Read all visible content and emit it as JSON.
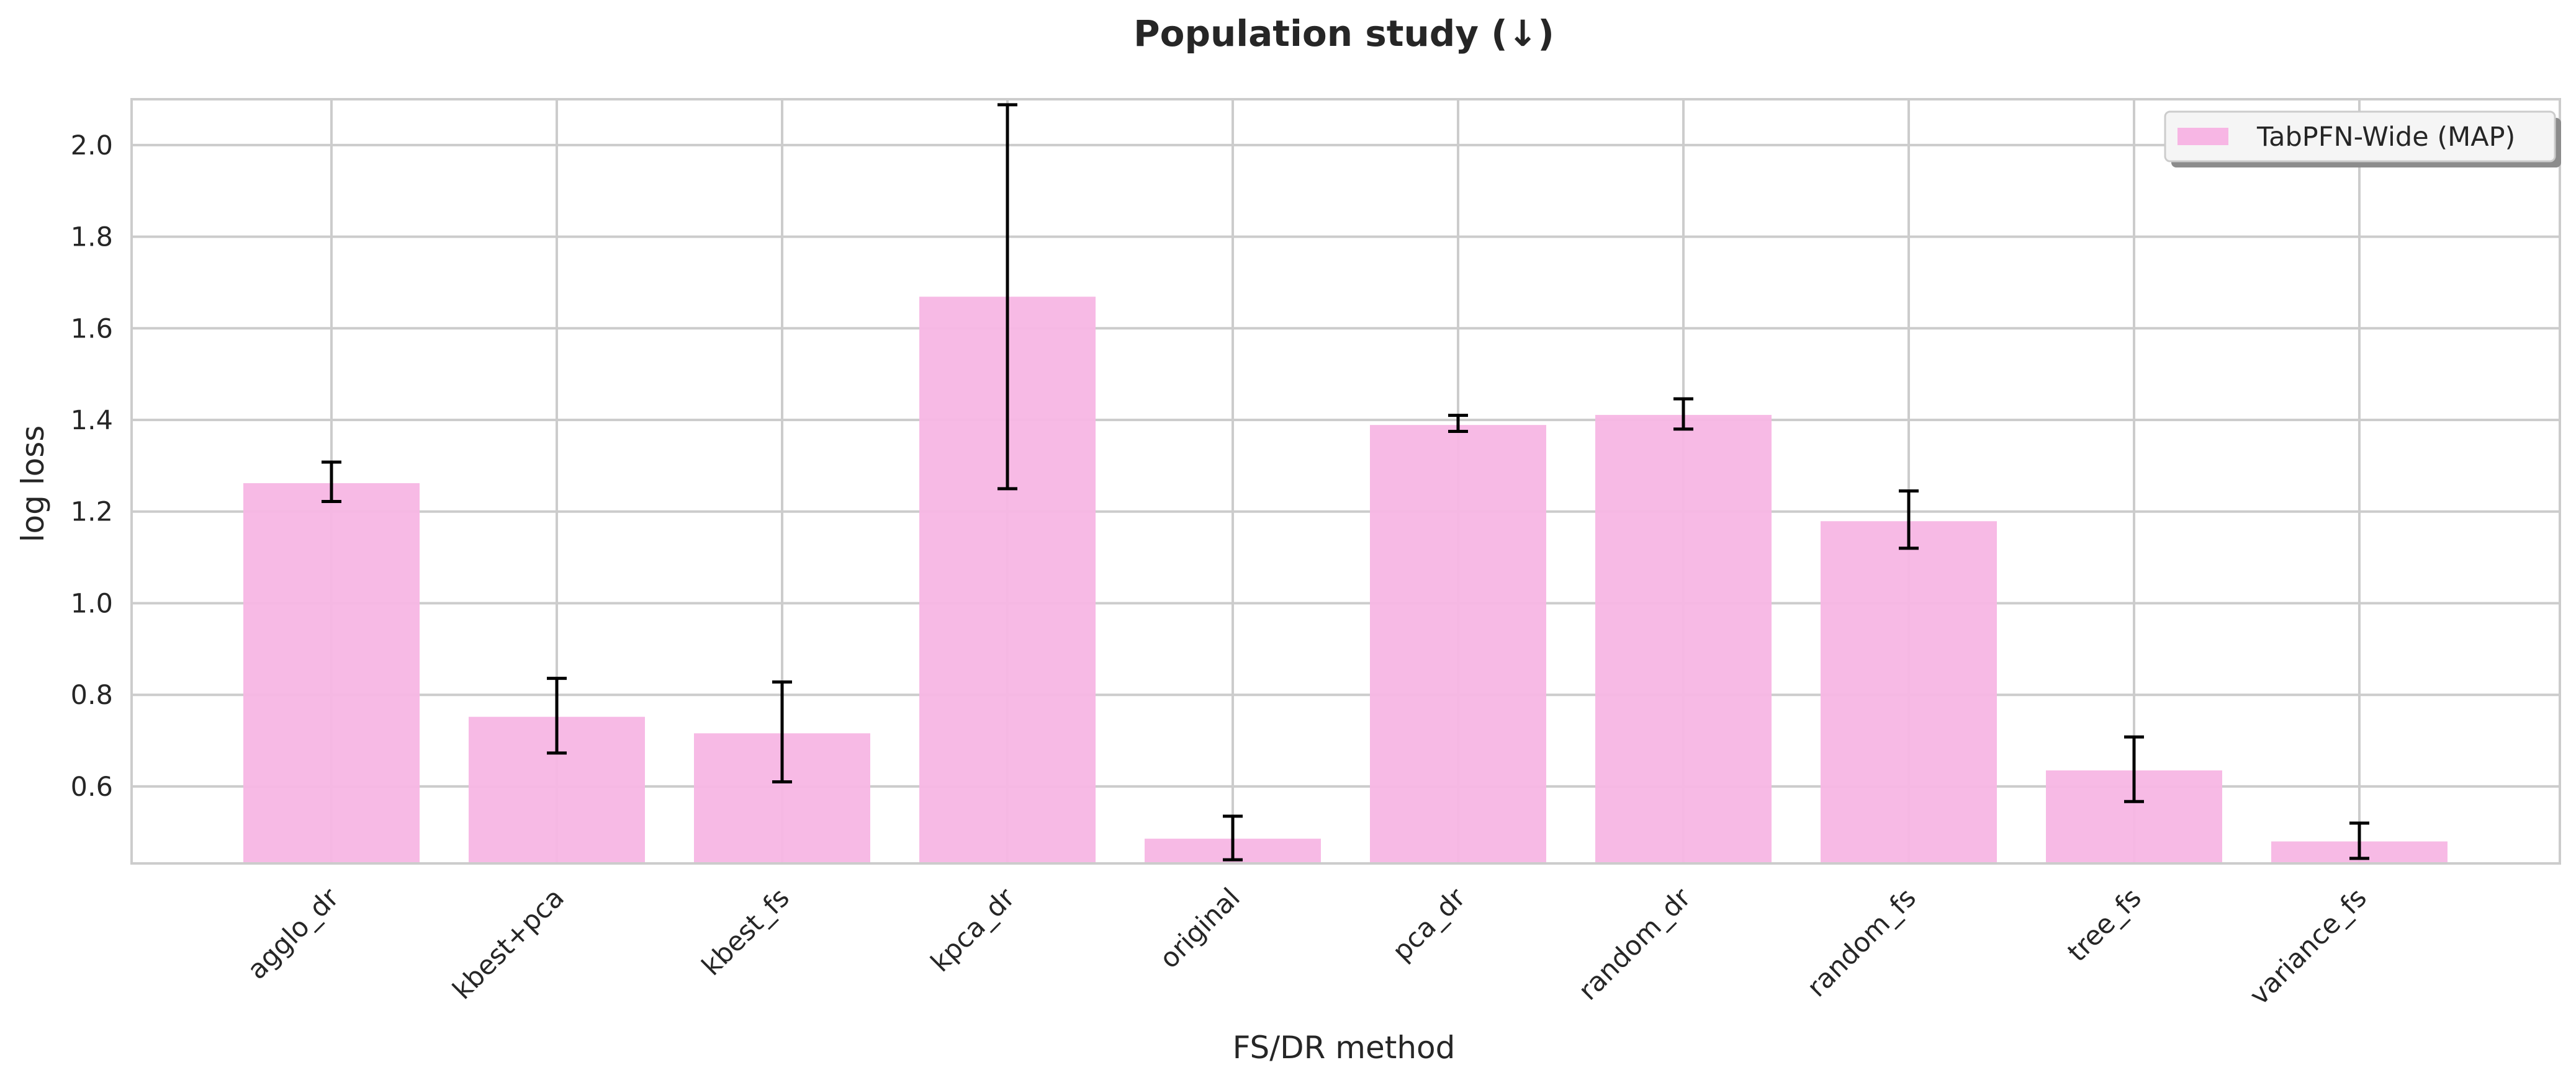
{
  "chart_data": {
    "type": "bar",
    "title": "Population study (↓)",
    "xlabel": "FS/DR method",
    "ylabel": "log loss",
    "categories": [
      "agglo_dr",
      "kbest+pca",
      "kbest_fs",
      "kpca_dr",
      "original",
      "pca_dr",
      "random_dr",
      "random_fs",
      "tree_fs",
      "variance_fs"
    ],
    "series": [
      {
        "name": "TabPFN-Wide (MAP)",
        "values": [
          1.262,
          0.752,
          0.716,
          1.669,
          0.486,
          1.389,
          1.411,
          1.179,
          0.635,
          0.48
        ],
        "error_low": [
          1.222,
          0.673,
          0.61,
          1.25,
          0.44,
          1.375,
          1.38,
          1.12,
          0.567,
          0.443
        ],
        "error_high": [
          1.308,
          0.836,
          0.828,
          2.088,
          0.535,
          1.41,
          1.446,
          1.245,
          0.708,
          0.52
        ],
        "color": "#f7b6e4"
      }
    ],
    "ylim": [
      0.432,
      2.1
    ],
    "yticks": [
      0.6,
      0.8,
      1.0,
      1.2,
      1.4,
      1.6,
      1.8,
      2.0
    ],
    "ytick_labels": [
      "0.6",
      "0.8",
      "1.0",
      "1.2",
      "1.4",
      "1.6",
      "1.8",
      "2.0"
    ],
    "grid": true,
    "legend_position": "top-right",
    "colors": {
      "bar": "#f7b6e4",
      "grid": "#cccccc",
      "spine": "#cccccc",
      "errorbar": "#000000",
      "text": "#262626"
    }
  }
}
